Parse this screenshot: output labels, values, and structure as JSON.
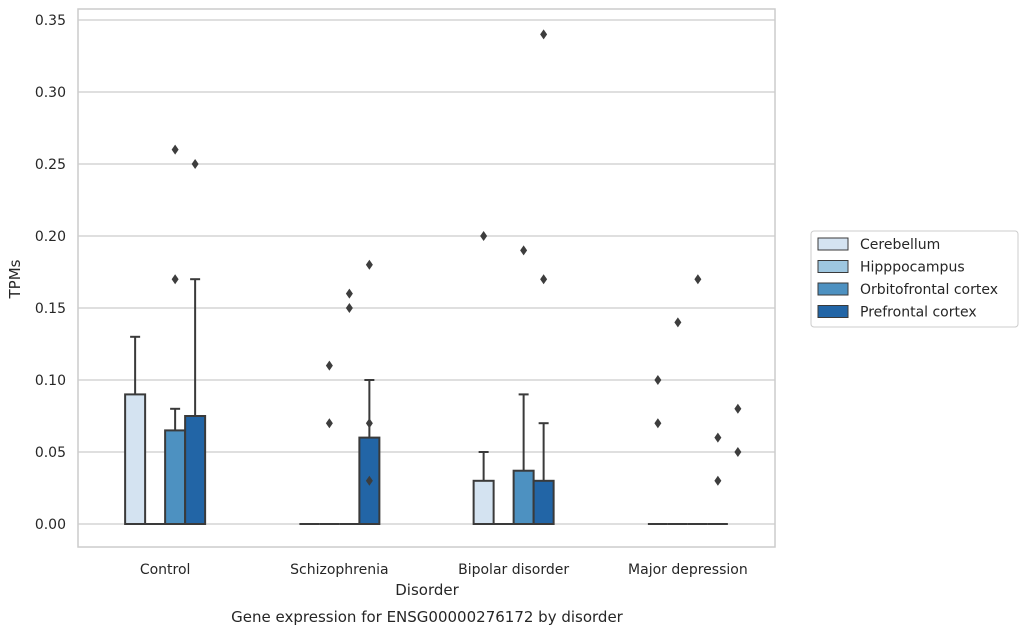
{
  "caption": "Gene expression for ENSG00000276172 by disorder",
  "chart_data": {
    "type": "bar",
    "xlabel": "Disorder",
    "ylabel": "TPMs",
    "ylim": [
      -0.017,
      0.357
    ],
    "yticks": [
      0.0,
      0.05,
      0.1,
      0.15,
      0.2,
      0.25,
      0.3,
      0.35
    ],
    "ytick_labels": [
      "0.00",
      "0.05",
      "0.10",
      "0.15",
      "0.20",
      "0.25",
      "0.30",
      "0.35"
    ],
    "grid": true,
    "legend_placement": "right",
    "categories": [
      "Control",
      "Schizophrenia",
      "Bipolar disorder",
      "Major depression"
    ],
    "series": [
      {
        "name": "Cerebellum",
        "color": "#d4e3f1",
        "values": [
          0.09,
          0.0,
          0.03,
          0.0
        ],
        "errors_upper": [
          0.13,
          null,
          0.05,
          null
        ],
        "outliers": [
          [],
          [],
          [
            0.2
          ],
          [
            0.07,
            0.1
          ]
        ]
      },
      {
        "name": "Hipppocampus",
        "color": "#9ec7e0",
        "values": [
          0.0,
          0.0,
          0.0,
          0.0
        ],
        "errors_upper": [
          null,
          null,
          null,
          null
        ],
        "outliers": [
          [],
          [
            0.07,
            0.11
          ],
          [],
          [
            0.14
          ]
        ]
      },
      {
        "name": "Orbitofrontal cortex",
        "color": "#4d91c1",
        "values": [
          0.065,
          0.0,
          0.037,
          0.0
        ],
        "errors_upper": [
          0.08,
          null,
          0.09,
          null
        ],
        "outliers": [
          [
            0.17,
            0.26
          ],
          [
            0.15,
            0.16
          ],
          [
            0.19
          ],
          [
            0.17
          ]
        ]
      },
      {
        "name": "Prefrontal cortex",
        "color": "#2265a6",
        "values": [
          0.075,
          0.06,
          0.03,
          0.0
        ],
        "errors_upper": [
          0.17,
          0.1,
          0.07,
          null
        ],
        "outliers": [
          [
            0.25
          ],
          [
            0.03,
            0.07,
            0.18
          ],
          [
            0.17,
            0.34
          ],
          [
            0.03,
            0.06
          ]
        ]
      }
    ],
    "extra_outliers": [
      {
        "category_index": 3,
        "offset_index": 4,
        "values": [
          0.05,
          0.08
        ]
      }
    ]
  }
}
